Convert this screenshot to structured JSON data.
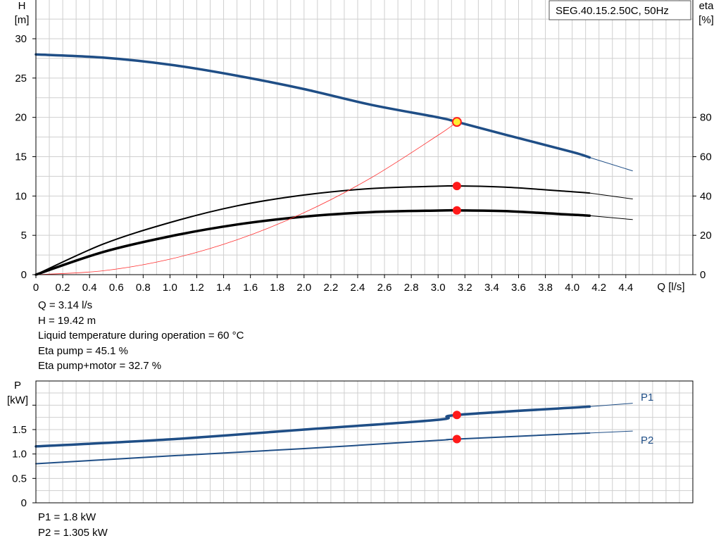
{
  "model_label": "SEG.40.15.2.50C, 50Hz",
  "chart_data": [
    {
      "type": "line",
      "name": "performance",
      "y_left_label_top": "H",
      "y_left_label_unit": "[m]",
      "y_right_label_top": "eta",
      "y_right_label_unit": "[%]",
      "xlabel": "Q [l/s]",
      "xlim": [
        0,
        4.9
      ],
      "ylim_left": [
        0,
        30
      ],
      "ylim_right": [
        0,
        120
      ],
      "x_ticks": [
        "0",
        "0.2",
        "0.4",
        "0.6",
        "0.8",
        "1.0",
        "1.2",
        "1.4",
        "1.6",
        "1.8",
        "2.0",
        "2.2",
        "2.4",
        "2.6",
        "2.8",
        "3.0",
        "3.2",
        "3.4",
        "3.6",
        "3.8",
        "4.0",
        "4.2",
        "4.4"
      ],
      "y_left_ticks": [
        "0",
        "5",
        "10",
        "15",
        "20",
        "25",
        "30"
      ],
      "y_right_ticks": [
        "0",
        "20",
        "40",
        "60",
        "80"
      ],
      "grid": true,
      "series": [
        {
          "id": "H",
          "color": "#1f4e86",
          "width": 3.5,
          "axis": "left",
          "x": [
            0,
            0.5,
            1.0,
            1.5,
            2.0,
            2.5,
            3.0,
            3.14,
            3.5,
            4.0,
            4.13
          ],
          "y": [
            28.0,
            27.6,
            26.7,
            25.3,
            23.6,
            21.6,
            20.0,
            19.42,
            17.8,
            15.6,
            14.9
          ]
        },
        {
          "id": "H_ext",
          "color": "#1f4e86",
          "width": 1,
          "axis": "left",
          "x": [
            4.13,
            4.45
          ],
          "y": [
            14.9,
            13.2
          ]
        },
        {
          "id": "eta_pump",
          "color": "#000000",
          "width": 2,
          "axis": "right",
          "x": [
            0,
            0.5,
            1.0,
            1.5,
            2.0,
            2.5,
            3.0,
            3.14,
            3.5,
            4.0,
            4.13
          ],
          "y": [
            0,
            15.5,
            26.5,
            35.0,
            40.5,
            43.8,
            45.0,
            45.1,
            44.5,
            42.2,
            41.5
          ]
        },
        {
          "id": "eta_pump_ext",
          "color": "#000000",
          "width": 1,
          "axis": "right",
          "x": [
            4.13,
            4.45
          ],
          "y": [
            41.5,
            38.5
          ]
        },
        {
          "id": "eta_total",
          "color": "#000000",
          "width": 3.5,
          "axis": "right",
          "x": [
            0,
            0.5,
            1.0,
            1.5,
            2.0,
            2.5,
            3.0,
            3.14,
            3.5,
            4.0,
            4.13
          ],
          "y": [
            0,
            11.5,
            19.5,
            25.5,
            29.5,
            31.8,
            32.6,
            32.7,
            32.3,
            30.5,
            30.0
          ]
        },
        {
          "id": "eta_total_ext",
          "color": "#000000",
          "width": 1,
          "axis": "right",
          "x": [
            4.13,
            4.45
          ],
          "y": [
            30.0,
            28.0
          ]
        },
        {
          "id": "system_curve",
          "color": "#ff3030",
          "width": 0.8,
          "axis": "left",
          "x": [
            0,
            0.5,
            1.0,
            1.5,
            2.0,
            2.5,
            3.0,
            3.14
          ],
          "y": [
            0,
            0.49,
            1.97,
            4.43,
            7.88,
            12.31,
            17.73,
            19.42
          ]
        }
      ],
      "points": [
        {
          "axis": "left",
          "x": 3.14,
          "y": 19.42,
          "fill": "#ffee33",
          "stroke": "#ff2020"
        },
        {
          "axis": "right",
          "x": 3.14,
          "y": 45.1,
          "fill": "#ff1a1a",
          "stroke": "#ff1a1a"
        },
        {
          "axis": "right",
          "x": 3.14,
          "y": 32.7,
          "fill": "#ff1a1a",
          "stroke": "#ff1a1a"
        }
      ]
    },
    {
      "type": "line",
      "name": "power",
      "y_label_top": "P",
      "y_label_unit": "[kW]",
      "xlim": [
        0,
        4.9
      ],
      "ylim": [
        0,
        2.0
      ],
      "y_ticks": [
        "0",
        "0.5",
        "1.0",
        "1.5"
      ],
      "grid": true,
      "series": [
        {
          "id": "P1",
          "name": "P1",
          "color": "#1f4e86",
          "width": 3.5,
          "x": [
            0,
            1.0,
            2.0,
            3.0,
            3.14,
            4.13
          ],
          "y": [
            1.155,
            1.3,
            1.5,
            1.7,
            1.8,
            1.97
          ]
        },
        {
          "id": "P1_ext",
          "color": "#1f4e86",
          "width": 1,
          "x": [
            4.13,
            4.45
          ],
          "y": [
            1.97,
            2.04
          ]
        },
        {
          "id": "P2",
          "name": "P2",
          "color": "#1f4e86",
          "width": 2,
          "x": [
            0,
            1.0,
            2.0,
            3.0,
            3.14,
            4.13
          ],
          "y": [
            0.8,
            0.96,
            1.11,
            1.28,
            1.305,
            1.43
          ]
        },
        {
          "id": "P2_ext",
          "color": "#1f4e86",
          "width": 1,
          "x": [
            4.13,
            4.45
          ],
          "y": [
            1.43,
            1.47
          ]
        }
      ],
      "legend": [
        {
          "label": "P1",
          "color": "#1f4e86"
        },
        {
          "label": "P2",
          "color": "#1f4e86"
        }
      ],
      "points": [
        {
          "x": 3.14,
          "y": 1.8,
          "fill": "#ff1a1a"
        },
        {
          "x": 3.14,
          "y": 1.305,
          "fill": "#ff1a1a"
        }
      ]
    }
  ],
  "info_top": [
    "Q = 3.14 l/s",
    "H = 19.42 m",
    "Liquid temperature during operation = 60 °C",
    "Eta pump = 45.1 %",
    "Eta pump+motor = 32.7 %"
  ],
  "info_bottom": [
    "P1 = 1.8 kW",
    "P2 = 1.305 kW"
  ]
}
